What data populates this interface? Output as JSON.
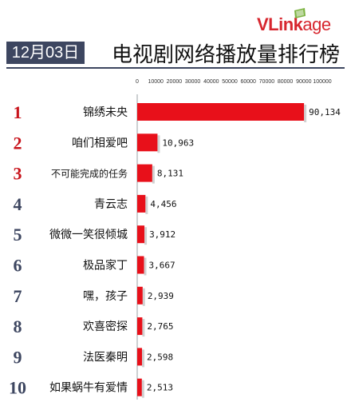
{
  "brand": {
    "name_red": "VLink",
    "name_rest": "age"
  },
  "date": "12月03日",
  "title": "电视剧网络播放量排行榜",
  "colors": {
    "bar": "#e8101a",
    "rank_top3": "#c8141c",
    "rank_rest": "#3d4660",
    "badge": "#3d4660"
  },
  "chart_data": {
    "type": "bar",
    "orientation": "horizontal",
    "categories": [
      "锦绣未央",
      "咱们相爱吧",
      "不可能完成的任务",
      "青云志",
      "微微一笑很倾城",
      "极品家丁",
      "嘿，孩子",
      "欢喜密探",
      "法医秦明",
      "如果蜗牛有爱情"
    ],
    "ranks": [
      "1",
      "2",
      "3",
      "4",
      "5",
      "6",
      "7",
      "8",
      "9",
      "10"
    ],
    "values": [
      90134,
      10963,
      8131,
      4456,
      3912,
      3667,
      2939,
      2765,
      2598,
      2513
    ],
    "value_labels": [
      "90,134",
      "10,963",
      "8,131",
      "4,456",
      "3,912",
      "3,667",
      "2,939",
      "2,765",
      "2,598",
      "2,513"
    ],
    "xlim": [
      0,
      100000
    ],
    "xticks": [
      0,
      10000,
      20000,
      30000,
      40000,
      50000,
      60000,
      70000,
      80000,
      90000,
      100000
    ],
    "xtick_labels": [
      "0",
      "10000",
      "20000",
      "30000",
      "40000",
      "50000",
      "60000",
      "70000",
      "80000",
      "90000",
      "100000"
    ],
    "grid": false,
    "legend": "none"
  }
}
